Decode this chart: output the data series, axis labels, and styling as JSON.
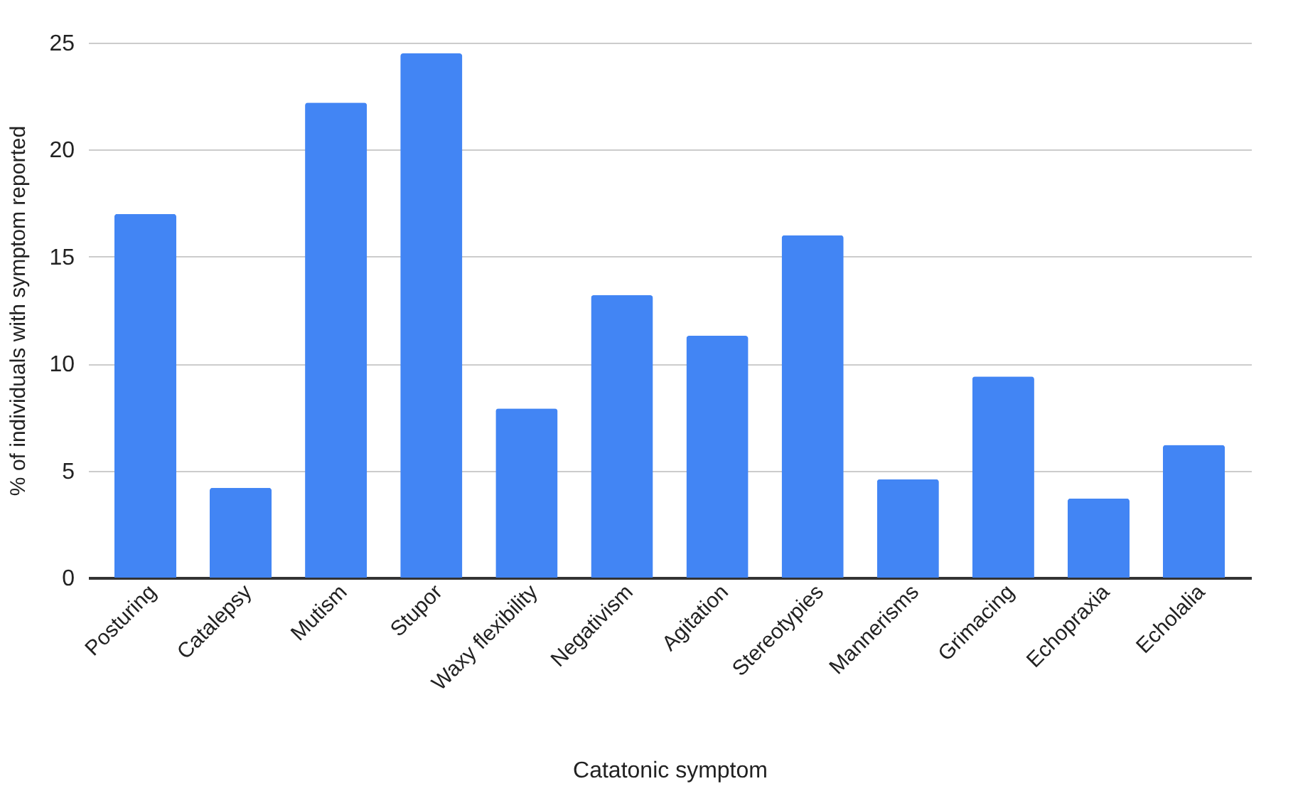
{
  "chart_data": {
    "type": "bar",
    "xlabel": "Catatonic symptom",
    "ylabel": "% of individuals with symptom reported",
    "categories": [
      "Posturing",
      "Catalepsy",
      "Mutism",
      "Stupor",
      "Waxy flexibility",
      "Negativism",
      "Agitation",
      "Stereotypies",
      "Mannerisms",
      "Grimacing",
      "Echopraxia",
      "Echolalia"
    ],
    "values": [
      17.0,
      4.2,
      22.2,
      24.5,
      7.9,
      13.2,
      11.3,
      16.0,
      4.6,
      9.4,
      3.7,
      6.2
    ],
    "color": "#4285f4",
    "ylim": [
      0,
      25
    ],
    "yticks": [
      0,
      5,
      10,
      15,
      20,
      25
    ],
    "grid": "y"
  }
}
